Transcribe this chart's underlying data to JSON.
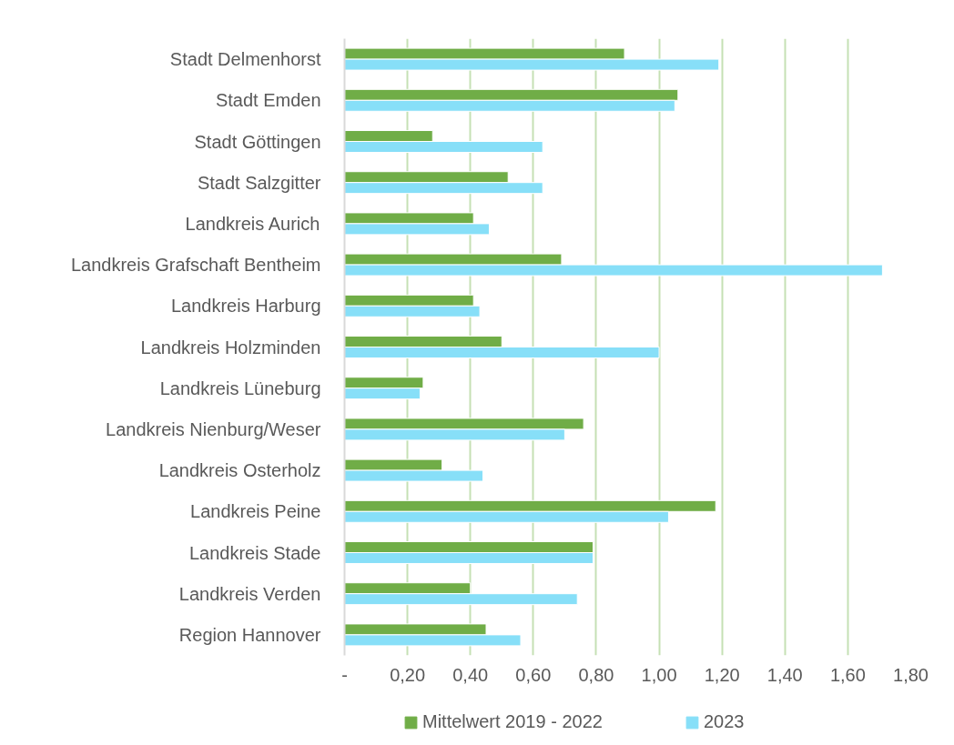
{
  "chart_data": {
    "type": "bar",
    "orientation": "horizontal",
    "categories": [
      "Stadt Delmenhorst",
      "Stadt Emden",
      "Stadt Göttingen",
      "Stadt Salzgitter",
      "Landkreis Aurich",
      "Landkreis Grafschaft Bentheim",
      "Landkreis Harburg",
      "Landkreis Holzminden",
      "Landkreis Lüneburg",
      "Landkreis Nienburg/Weser",
      "Landkreis Osterholz",
      "Landkreis Peine",
      "Landkreis Stade",
      "Landkreis Verden",
      "Region Hannover"
    ],
    "series": [
      {
        "name": "Mittelwert 2019 - 2022",
        "color": "#70ad47",
        "values": [
          0.89,
          1.06,
          0.28,
          0.52,
          0.41,
          0.69,
          0.41,
          0.5,
          0.25,
          0.76,
          0.31,
          1.18,
          0.79,
          0.4,
          0.45
        ]
      },
      {
        "name": "2023",
        "color": "#87dff8",
        "values": [
          1.19,
          1.05,
          0.63,
          0.63,
          0.46,
          1.71,
          0.43,
          1.0,
          0.24,
          0.7,
          0.44,
          1.03,
          0.79,
          0.74,
          0.56
        ]
      }
    ],
    "xlim": [
      0,
      1.8
    ],
    "xticks": [
      {
        "value": 0,
        "label": "-"
      },
      {
        "value": 0.2,
        "label": "0,20"
      },
      {
        "value": 0.4,
        "label": "0,40"
      },
      {
        "value": 0.6,
        "label": "0,60"
      },
      {
        "value": 0.8,
        "label": "0,80"
      },
      {
        "value": 1.0,
        "label": "1,00"
      },
      {
        "value": 1.2,
        "label": "1,20"
      },
      {
        "value": 1.4,
        "label": "1,40"
      },
      {
        "value": 1.6,
        "label": "1,60"
      },
      {
        "value": 1.8,
        "label": "1,80"
      }
    ],
    "grid": "x",
    "legend": "bottom"
  }
}
